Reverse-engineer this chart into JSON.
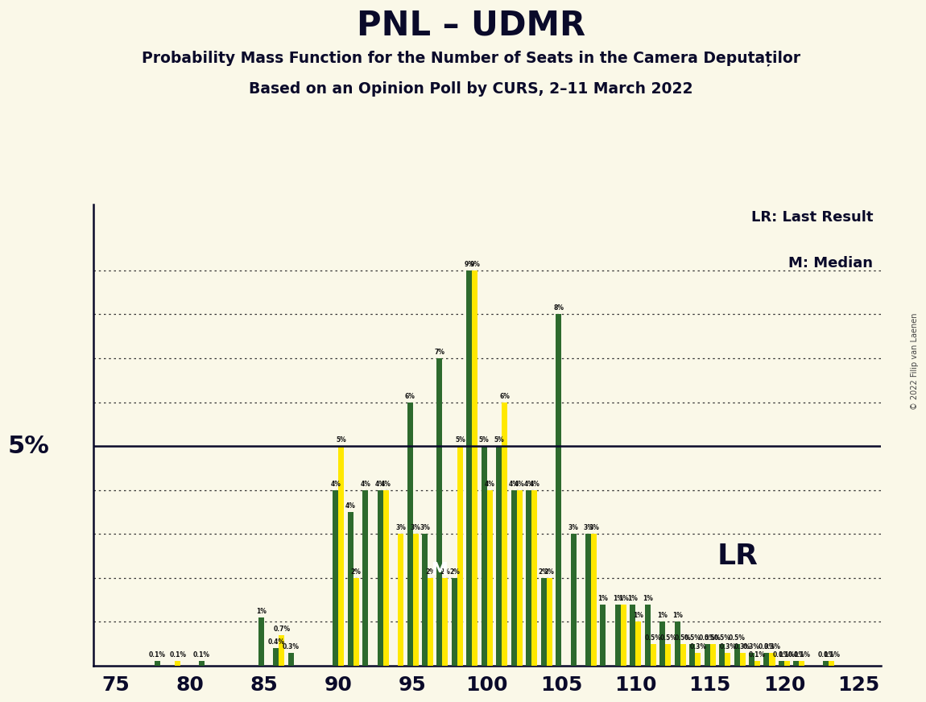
{
  "title": "PNL – UDMR",
  "subtitle1": "Probability Mass Function for the Number of Seats in the Camera Deputaților",
  "subtitle2": "Based on an Opinion Poll by CURS, 2–11 March 2022",
  "copyright": "© 2022 Filip van Laenen",
  "background_color": "#FAF8E8",
  "ylabel": "5%",
  "seats": [
    75,
    76,
    77,
    78,
    79,
    80,
    81,
    82,
    83,
    84,
    85,
    86,
    87,
    88,
    89,
    90,
    91,
    92,
    93,
    94,
    95,
    96,
    97,
    98,
    99,
    100,
    101,
    102,
    103,
    104,
    105,
    106,
    107,
    108,
    109,
    110,
    111,
    112,
    113,
    114,
    115,
    116,
    117,
    118,
    119,
    120,
    121,
    122,
    123,
    124,
    125
  ],
  "pnl": [
    0,
    0,
    0,
    0.1,
    0,
    0,
    0.1,
    0,
    0,
    0,
    1.1,
    0.4,
    0.3,
    0,
    0,
    4.0,
    3.5,
    4.0,
    4.0,
    0,
    6.0,
    3.0,
    7.0,
    2.0,
    9.0,
    5.0,
    5.0,
    4.0,
    4.0,
    2.0,
    8.0,
    3.0,
    3.0,
    1.4,
    1.4,
    1.4,
    1.4,
    1.0,
    1.0,
    0.5,
    0.5,
    0.5,
    0.5,
    0.3,
    0.3,
    0.1,
    0.1,
    0,
    0.1,
    0,
    0
  ],
  "udmr": [
    0,
    0,
    0,
    0,
    0.1,
    0,
    0,
    0,
    0,
    0,
    0,
    0.7,
    0,
    0,
    0,
    5.0,
    2.0,
    0,
    4.0,
    3.0,
    3.0,
    2.0,
    2.0,
    5.0,
    9.0,
    4.0,
    6.0,
    4.0,
    4.0,
    2.0,
    0,
    0,
    3.0,
    0,
    1.4,
    1.0,
    0.5,
    0.5,
    0.5,
    0.3,
    0.5,
    0.3,
    0.3,
    0.1,
    0.3,
    0.1,
    0.1,
    0,
    0.1,
    0,
    0
  ],
  "median_seat": 97,
  "lr_seat": 110,
  "color_pnl": "#2d6a2d",
  "color_udmr": "#FFE800",
  "lr_legend": "LR: Last Result",
  "median_legend": "M: Median",
  "lr_label": "LR",
  "median_label": "M"
}
